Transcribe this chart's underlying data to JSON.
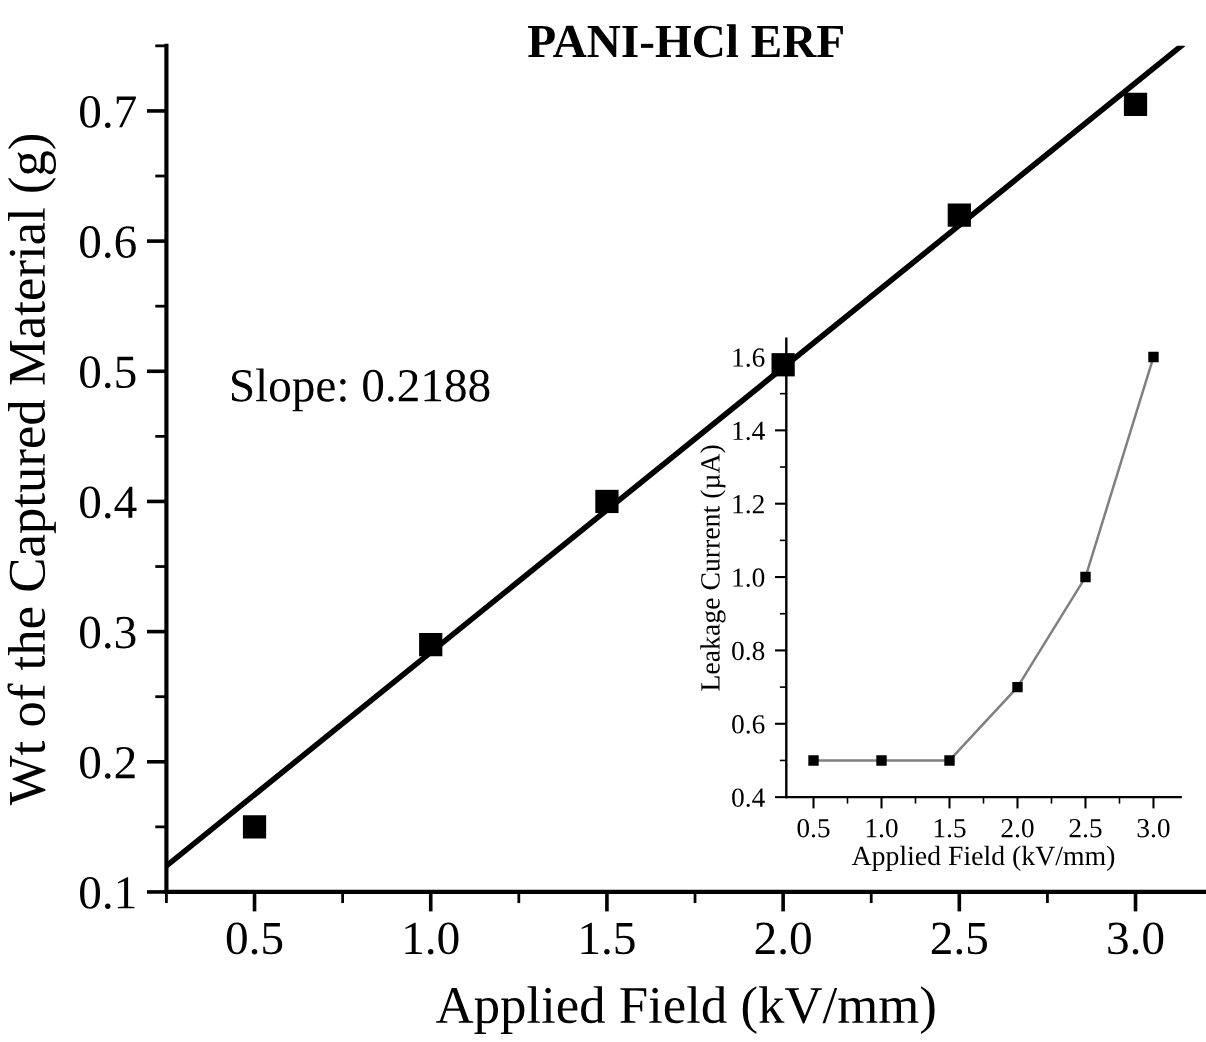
{
  "chart_data": [
    {
      "type": "scatter",
      "title": "PANI-HCl ERF",
      "xlabel": "Applied Field (kV/mm)",
      "ylabel": "Wt of the Captured Material (g)",
      "x": [
        0.5,
        1.0,
        1.5,
        2.0,
        2.5,
        3.0
      ],
      "xlim": [
        0.25,
        3.2
      ],
      "ylim": [
        0.1,
        0.75
      ],
      "xticks": [
        {
          "value": 0.5,
          "label": "0.5"
        },
        {
          "value": 1.0,
          "label": "1.0"
        },
        {
          "value": 1.5,
          "label": "1.5"
        },
        {
          "value": 2.0,
          "label": "2.0"
        },
        {
          "value": 2.5,
          "label": "2.5"
        },
        {
          "value": 3.0,
          "label": "3.0"
        }
      ],
      "yticks": [
        0.1,
        0.2,
        0.3,
        0.4,
        0.5,
        0.6,
        0.7
      ],
      "annotations": [
        "Slope: 0.2188"
      ],
      "grid": false,
      "marker": "square",
      "series": [
        {
          "color": "#000000",
          "values": [
            0.15,
            0.29,
            0.4,
            0.505,
            0.62,
            0.705
          ]
        },
        {
          "type": "line",
          "marker": "none",
          "color": "#000000",
          "x": [
            0.25,
            3.13
          ],
          "values": [
            0.12,
            0.75
          ]
        }
      ]
    },
    {
      "type": "line",
      "xlabel": "Applied Field (kV/mm)",
      "ylabel": "Leakage Current (µA)",
      "x": [
        0.5,
        1.0,
        1.5,
        2.0,
        2.5,
        3.0
      ],
      "xlim": [
        0.3,
        3.2
      ],
      "ylim": [
        0.4,
        1.65
      ],
      "xticks": [
        {
          "value": 0.5,
          "label": "0.5"
        },
        {
          "value": 1.0,
          "label": "1.0"
        },
        {
          "value": 1.5,
          "label": "1.5"
        },
        {
          "value": 2.0,
          "label": "2.0"
        },
        {
          "value": 2.5,
          "label": "2.5"
        },
        {
          "value": 3.0,
          "label": "3.0"
        }
      ],
      "yticks": [
        0.4,
        0.6,
        0.8,
        {
          "value": 1.0,
          "label": "1.0"
        },
        1.2,
        1.4,
        1.6
      ],
      "grid": false,
      "marker": "square",
      "series": [
        {
          "color": "#808080",
          "colors": [
            "#000000",
            "#000000",
            "#000000",
            "#000000",
            "#000000",
            "#000000"
          ],
          "values": [
            0.5,
            0.5,
            0.5,
            0.7,
            1.0,
            1.6
          ]
        }
      ]
    }
  ]
}
